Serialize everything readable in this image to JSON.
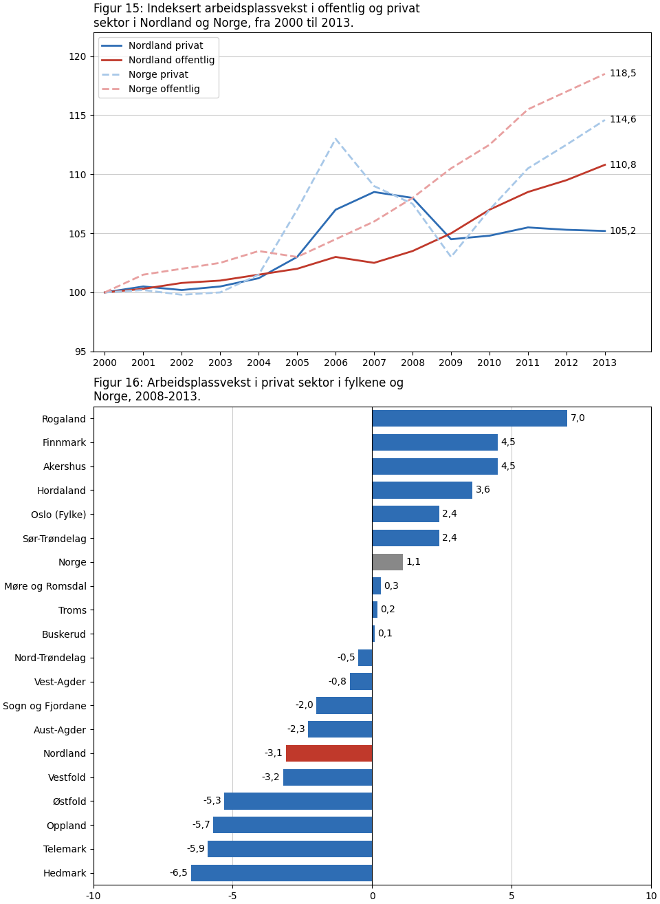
{
  "chart_data": [
    {
      "type": "line",
      "title": "Figur 15: Indeksert arbeidsplassvekst i offentlig og privat\nsektor i Nordland og Norge, fra 2000 til 2013.",
      "x": [
        2000,
        2001,
        2002,
        2003,
        2004,
        2005,
        2006,
        2007,
        2008,
        2009,
        2010,
        2011,
        2012,
        2013
      ],
      "series": [
        {
          "name": "Nordland privat",
          "color": "#2e6db4",
          "line_style": "solid",
          "values": [
            100,
            100.5,
            100.2,
            100.5,
            101.2,
            103.0,
            107.0,
            108.5,
            108.0,
            104.5,
            104.8,
            105.5,
            105.3,
            105.2
          ]
        },
        {
          "name": "Nordland offentlig",
          "color": "#c0392b",
          "line_style": "solid",
          "values": [
            100,
            100.3,
            100.8,
            101.0,
            101.5,
            102.0,
            103.0,
            102.5,
            103.5,
            105.0,
            107.0,
            108.5,
            109.5,
            110.8
          ]
        },
        {
          "name": "Norge privat",
          "color": "#a8c8e8",
          "line_style": "dashed",
          "values": [
            100,
            100.2,
            99.8,
            100.0,
            101.5,
            107.0,
            113.0,
            109.0,
            107.5,
            103.0,
            107.0,
            110.5,
            112.5,
            114.6
          ]
        },
        {
          "name": "Norge offentlig",
          "color": "#e8a0a0",
          "line_style": "dashed",
          "values": [
            100,
            101.5,
            102.0,
            102.5,
            103.5,
            103.0,
            104.5,
            106.0,
            108.0,
            110.5,
            112.5,
            115.5,
            117.0,
            118.5
          ]
        }
      ],
      "xlim": [
        1999.7,
        2014.2
      ],
      "xticks": [
        2000,
        2001,
        2002,
        2003,
        2004,
        2005,
        2006,
        2007,
        2008,
        2009,
        2010,
        2011,
        2012,
        2013
      ],
      "ylim": [
        95,
        122
      ],
      "yticks": [
        95,
        100,
        105,
        110,
        115,
        120
      ],
      "grid": true,
      "legend": "upper left",
      "annotations": [
        {
          "text": "105,2",
          "x": 2013,
          "y": 105.2
        },
        {
          "text": "110,8",
          "x": 2013,
          "y": 110.8
        },
        {
          "text": "114,6",
          "x": 2013,
          "y": 114.6
        },
        {
          "text": "118,5",
          "x": 2013,
          "y": 118.5
        }
      ]
    },
    {
      "type": "bar",
      "orientation": "horizontal",
      "title": "Figur 16: Arbeidsplassvekst i privat sektor i fylkene og\nNorge, 2008-2013.",
      "categories": [
        "Rogaland",
        "Finnmark",
        "Akershus",
        "Hordaland",
        "Oslo (Fylke)",
        "Sør-Trøndelag",
        "Norge",
        "Møre og Romsdal",
        "Troms",
        "Buskerud",
        "Nord-Trøndelag",
        "Vest-Agder",
        "Sogn og Fjordane",
        "Aust-Agder",
        "Nordland",
        "Vestfold",
        "Østfold",
        "Oppland",
        "Telemark",
        "Hedmark"
      ],
      "values": [
        7.0,
        4.5,
        4.5,
        3.6,
        2.4,
        2.4,
        1.1,
        0.3,
        0.2,
        0.1,
        -0.5,
        -0.8,
        -2.0,
        -2.3,
        -3.1,
        -3.2,
        -5.3,
        -5.7,
        -5.9,
        -6.5
      ],
      "colors": [
        "#2e6db4",
        "#2e6db4",
        "#2e6db4",
        "#2e6db4",
        "#2e6db4",
        "#2e6db4",
        "#888888",
        "#2e6db4",
        "#2e6db4",
        "#2e6db4",
        "#2e6db4",
        "#2e6db4",
        "#2e6db4",
        "#2e6db4",
        "#c0392b",
        "#2e6db4",
        "#2e6db4",
        "#2e6db4",
        "#2e6db4",
        "#2e6db4"
      ],
      "data_labels": true,
      "value_labels": [
        "7,0",
        "4,5",
        "4,5",
        "3,6",
        "2,4",
        "2,4",
        "1,1",
        "0,3",
        "0,2",
        "0,1",
        "-0,5",
        "-0,8",
        "-2,0",
        "-2,3",
        "-3,1",
        "-3,2",
        "-5,3",
        "-5,7",
        "-5,9",
        "-6,5"
      ],
      "xlim": [
        -10,
        10
      ],
      "xticks": [
        -10,
        -5,
        0,
        5,
        10
      ],
      "grid": true
    }
  ]
}
